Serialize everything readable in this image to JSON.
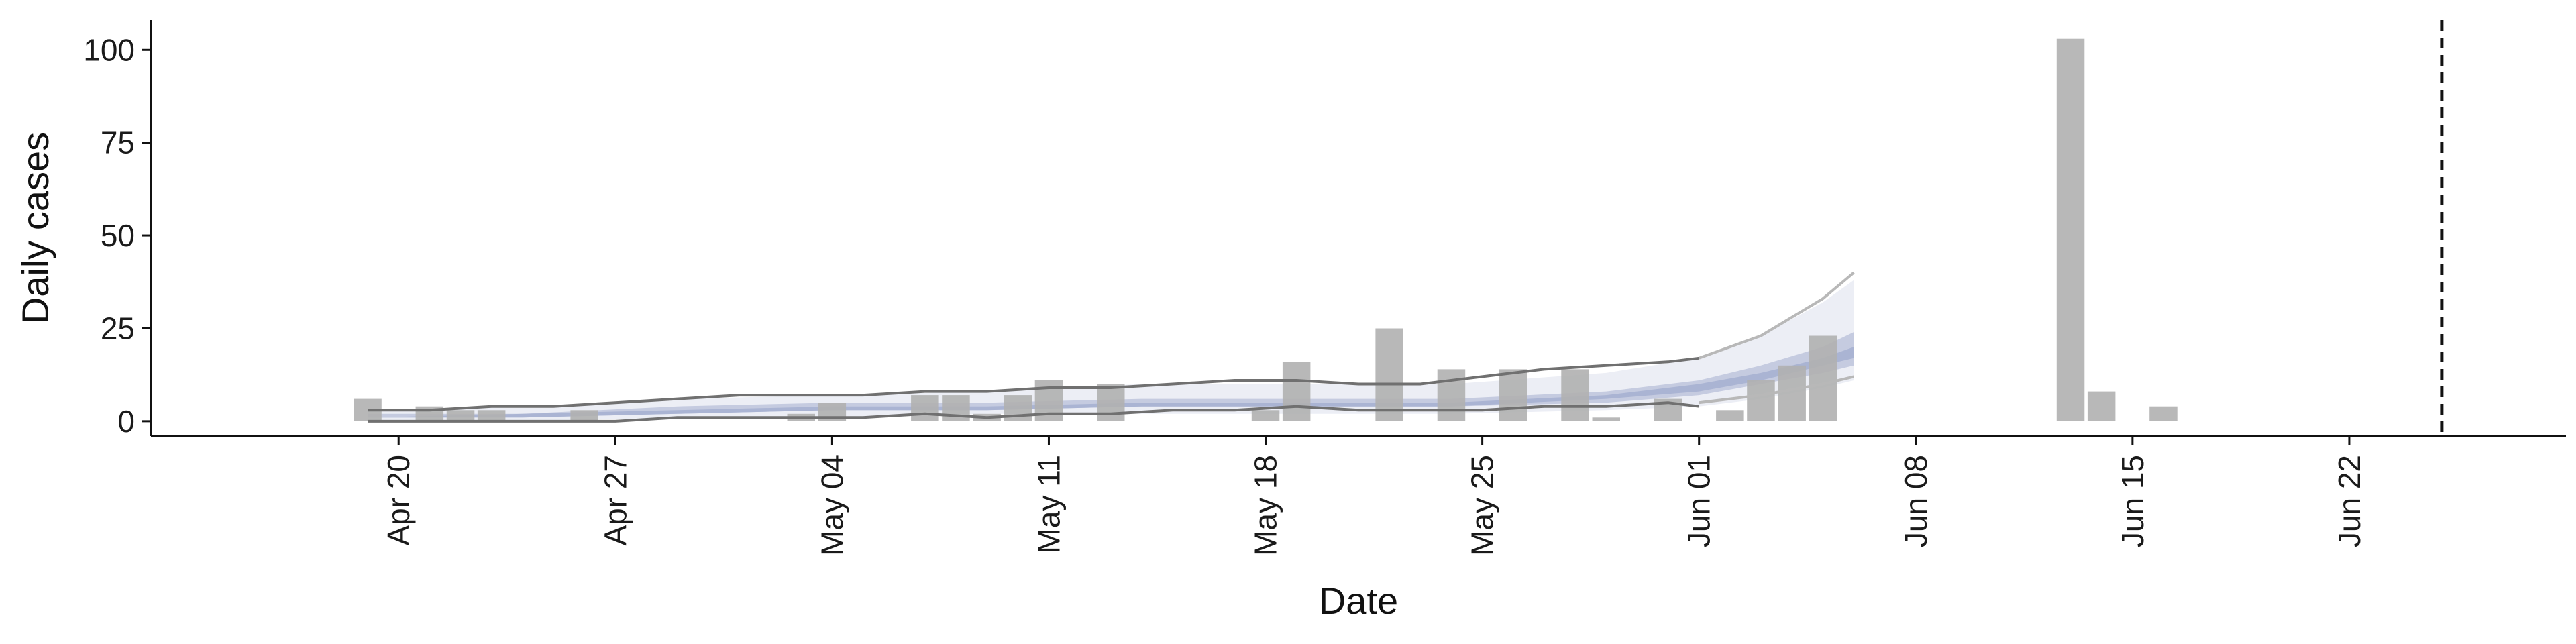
{
  "chart_data": {
    "type": "bar",
    "xlabel": "Date",
    "ylabel": "Daily cases",
    "x_range": [
      "2020-04-12",
      "2020-06-29"
    ],
    "ylim": [
      -4,
      108
    ],
    "y_ticks": [
      0,
      25,
      50,
      75,
      100
    ],
    "x_ticks": [
      {
        "date": "2020-04-20",
        "label": "Apr 20"
      },
      {
        "date": "2020-04-27",
        "label": "Apr 27"
      },
      {
        "date": "2020-05-04",
        "label": "May 04"
      },
      {
        "date": "2020-05-11",
        "label": "May 11"
      },
      {
        "date": "2020-05-18",
        "label": "May 18"
      },
      {
        "date": "2020-05-25",
        "label": "May 25"
      },
      {
        "date": "2020-06-01",
        "label": "Jun 01"
      },
      {
        "date": "2020-06-08",
        "label": "Jun 08"
      },
      {
        "date": "2020-06-15",
        "label": "Jun 15"
      },
      {
        "date": "2020-06-22",
        "label": "Jun 22"
      }
    ],
    "grid": false,
    "legend": "none",
    "colors": {
      "bars": "#b0b0b0",
      "band_outer": "#eceef5",
      "band_inner": "#c5cbe0",
      "band_core": "#aab4d3",
      "interval_lines": "#707070",
      "projection_lines": "#b8b8b8",
      "vline": "#111111"
    },
    "reported_cases": [
      {
        "date": "2020-04-19",
        "value": 6
      },
      {
        "date": "2020-04-21",
        "value": 4
      },
      {
        "date": "2020-04-22",
        "value": 3
      },
      {
        "date": "2020-04-23",
        "value": 3
      },
      {
        "date": "2020-04-26",
        "value": 3
      },
      {
        "date": "2020-05-03",
        "value": 2
      },
      {
        "date": "2020-05-04",
        "value": 5
      },
      {
        "date": "2020-05-07",
        "value": 7
      },
      {
        "date": "2020-05-08",
        "value": 7
      },
      {
        "date": "2020-05-09",
        "value": 2
      },
      {
        "date": "2020-05-10",
        "value": 7
      },
      {
        "date": "2020-05-11",
        "value": 11
      },
      {
        "date": "2020-05-13",
        "value": 10
      },
      {
        "date": "2020-05-18",
        "value": 3
      },
      {
        "date": "2020-05-19",
        "value": 16
      },
      {
        "date": "2020-05-22",
        "value": 25
      },
      {
        "date": "2020-05-24",
        "value": 14
      },
      {
        "date": "2020-05-26",
        "value": 14
      },
      {
        "date": "2020-05-28",
        "value": 14
      },
      {
        "date": "2020-05-29",
        "value": 1
      },
      {
        "date": "2020-05-31",
        "value": 6
      },
      {
        "date": "2020-06-02",
        "value": 3
      },
      {
        "date": "2020-06-03",
        "value": 11
      },
      {
        "date": "2020-06-04",
        "value": 15
      },
      {
        "date": "2020-06-05",
        "value": 23
      },
      {
        "date": "2020-06-13",
        "value": 103
      },
      {
        "date": "2020-06-14",
        "value": 8
      },
      {
        "date": "2020-06-16",
        "value": 4
      }
    ],
    "estimate_band": {
      "dates": [
        "2020-04-19",
        "2020-04-24",
        "2020-04-29",
        "2020-05-04",
        "2020-05-09",
        "2020-05-14",
        "2020-05-19",
        "2020-05-24",
        "2020-05-29",
        "2020-06-01",
        "2020-06-03",
        "2020-06-05",
        "2020-06-06"
      ],
      "outer_lower": [
        0,
        0,
        1,
        1,
        2,
        2,
        2,
        2,
        3,
        4,
        6,
        9,
        11
      ],
      "outer_upper": [
        3,
        4,
        6,
        7,
        8,
        10,
        10,
        10,
        13,
        17,
        23,
        32,
        38
      ],
      "inner_lower": [
        1,
        1,
        2,
        3,
        3,
        4,
        4,
        4,
        5,
        7,
        10,
        13,
        15
      ],
      "inner_upper": [
        2,
        2,
        4,
        5,
        5,
        6,
        6,
        6,
        8,
        11,
        15,
        20,
        24
      ],
      "core_lower": [
        1,
        1,
        2,
        3,
        3,
        4,
        4,
        4,
        6,
        8,
        11,
        15,
        17
      ],
      "core_upper": [
        1,
        2,
        3,
        4,
        4,
        5,
        5,
        5,
        7,
        10,
        13,
        17,
        20
      ]
    },
    "interval_lines": {
      "dates": [
        "2020-04-19",
        "2020-04-21",
        "2020-04-23",
        "2020-04-25",
        "2020-04-27",
        "2020-04-29",
        "2020-05-01",
        "2020-05-03",
        "2020-05-05",
        "2020-05-07",
        "2020-05-09",
        "2020-05-11",
        "2020-05-13",
        "2020-05-15",
        "2020-05-17",
        "2020-05-19",
        "2020-05-21",
        "2020-05-23",
        "2020-05-25",
        "2020-05-27",
        "2020-05-29",
        "2020-05-31",
        "2020-06-01"
      ],
      "upper": [
        3,
        3,
        4,
        4,
        5,
        6,
        7,
        7,
        7,
        8,
        8,
        9,
        9,
        10,
        11,
        11,
        10,
        10,
        12,
        14,
        15,
        16,
        17
      ],
      "lower": [
        0,
        0,
        0,
        0,
        0,
        1,
        1,
        1,
        1,
        2,
        1,
        2,
        2,
        3,
        3,
        4,
        3,
        3,
        3,
        4,
        4,
        5,
        4
      ]
    },
    "projection_lines": {
      "dates": [
        "2020-06-01",
        "2020-06-03",
        "2020-06-05",
        "2020-06-06"
      ],
      "upper": [
        17,
        23,
        33,
        40
      ],
      "lower": [
        5,
        7,
        10,
        12
      ]
    },
    "vertical_line_date": "2020-06-25"
  }
}
